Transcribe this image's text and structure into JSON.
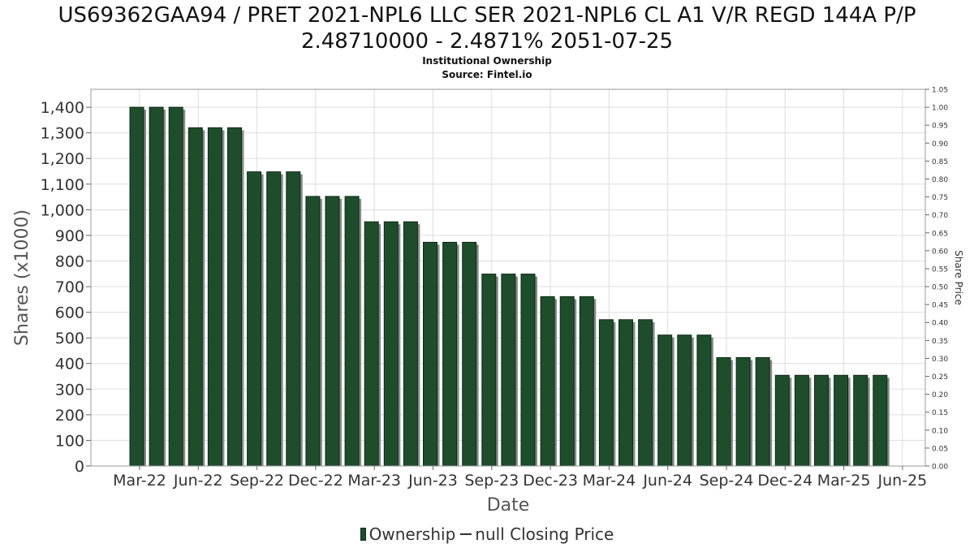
{
  "chart_data": {
    "type": "bar",
    "title": "US69362GAA94 / PRET 2021-NPL6 LLC SER 2021-NPL6 CL A1 V/R REGD 144A P/P",
    "title_line2": "2.48710000 - 2.4871% 2051-07-25",
    "subtitle": "Institutional Ownership",
    "source": "Source: Fintel.io",
    "xlabel": "Date",
    "ylabel": "Shares (x1000)",
    "y2label": "Share Price",
    "ylim": [
      0,
      1470
    ],
    "y2lim": [
      0,
      1.05
    ],
    "yticks": [
      0,
      100,
      200,
      300,
      400,
      500,
      600,
      700,
      800,
      900,
      1000,
      1100,
      1200,
      1300,
      1400
    ],
    "yticklabels": [
      "0",
      "100",
      "200",
      "300",
      "400",
      "500",
      "600",
      "700",
      "800",
      "900",
      "1,000",
      "1,100",
      "1,200",
      "1,300",
      "1,400"
    ],
    "y2ticklabels": [
      "0.00",
      "0.05",
      "0.10",
      "0.15",
      "0.20",
      "0.25",
      "0.30",
      "0.35",
      "0.40",
      "0.45",
      "0.50",
      "0.55",
      "0.60",
      "0.65",
      "0.70",
      "0.75",
      "0.80",
      "0.85",
      "0.90",
      "0.95",
      "1.00",
      "1.05"
    ],
    "xticklabels": [
      "Mar-22",
      "Jun-22",
      "Sep-22",
      "Dec-22",
      "Mar-23",
      "Jun-23",
      "Sep-23",
      "Dec-23",
      "Mar-24",
      "Jun-24",
      "Sep-24",
      "Dec-24",
      "Mar-25",
      "Jun-25"
    ],
    "grid": true,
    "legend_position": "bottom",
    "colors": {
      "bar": "#1e4d2b",
      "bar_shadow": "#8a8a8a",
      "grid": "#dddddd"
    },
    "series": [
      {
        "name": "Ownership",
        "values": [
          1400,
          1400,
          1400,
          1320,
          1320,
          1320,
          1148,
          1148,
          1148,
          1052,
          1052,
          1052,
          953,
          953,
          953,
          873,
          873,
          873,
          749,
          749,
          749,
          661,
          661,
          661,
          571,
          571,
          571,
          511,
          511,
          511,
          423,
          423,
          423,
          354,
          354,
          354,
          354,
          354,
          354
        ]
      },
      {
        "name": "null Closing Price",
        "values": []
      }
    ]
  }
}
